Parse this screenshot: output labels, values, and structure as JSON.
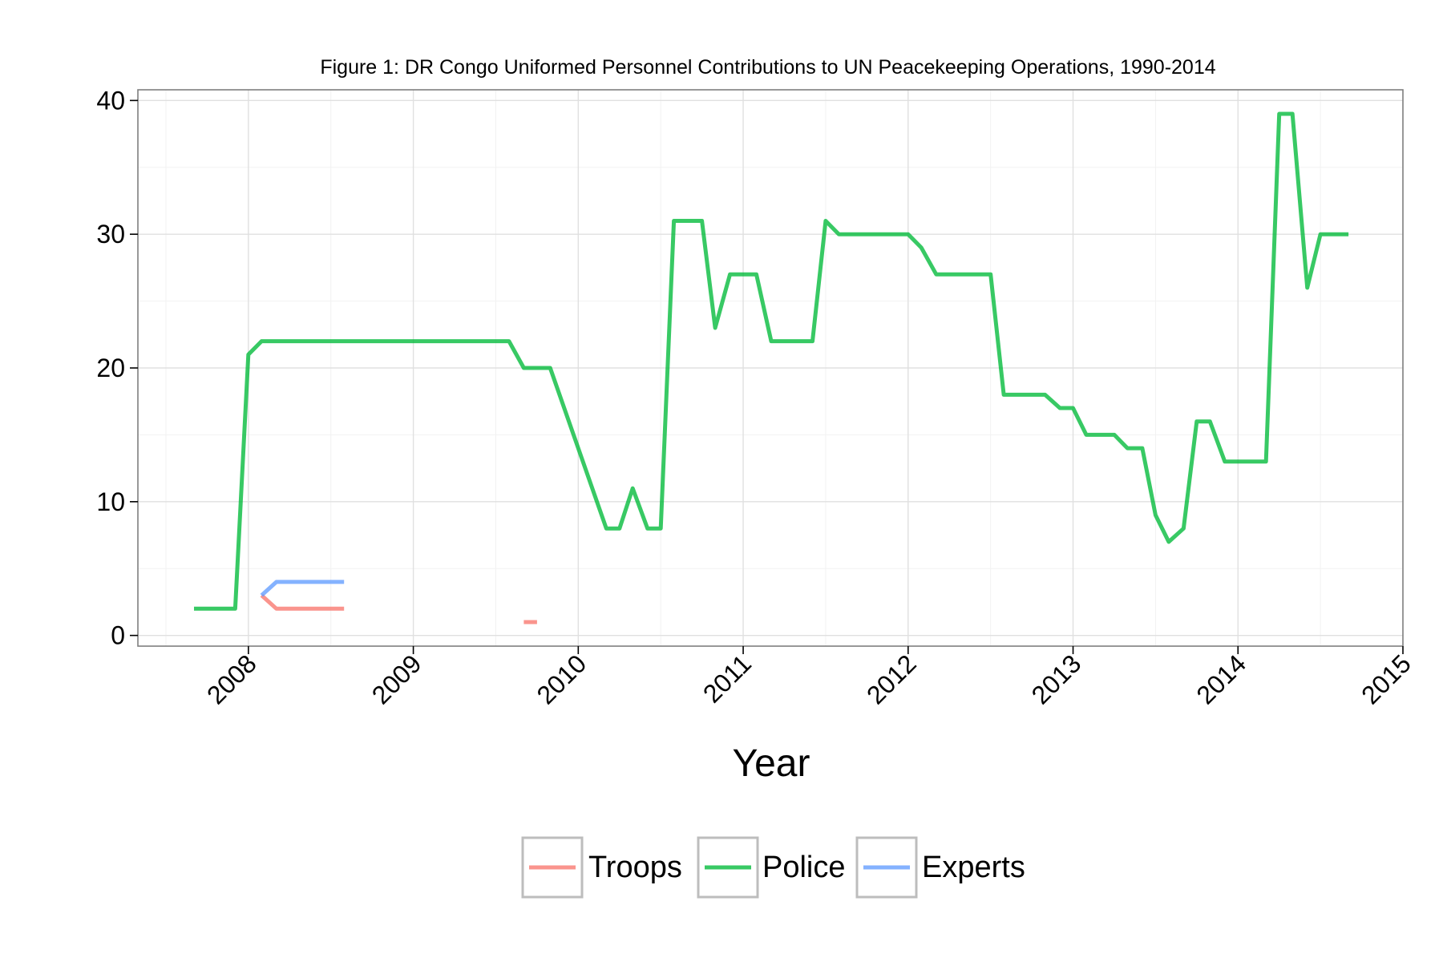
{
  "chart_data": {
    "type": "line",
    "title": "Figure 1: DR Congo Uniformed Personnel Contributions to UN Peacekeeping Operations, 1990-2014",
    "xlabel": "Year",
    "ylabel": "",
    "xlim": [
      2007.33,
      2015.0
    ],
    "ylim": [
      -0.8,
      40.8
    ],
    "x_ticks": [
      2008,
      2009,
      2010,
      2011,
      2012,
      2013,
      2014,
      2015
    ],
    "x_tick_labels": [
      "2008",
      "2009",
      "2010",
      "2011",
      "2012",
      "2013",
      "2014",
      "2015"
    ],
    "y_ticks": [
      0,
      10,
      20,
      30,
      40
    ],
    "y_tick_labels": [
      "0",
      "10",
      "20",
      "30",
      "40"
    ],
    "grid": true,
    "legend_position": "bottom",
    "series": [
      {
        "name": "Troops",
        "color": "#F8766D",
        "segments": [
          {
            "x": [
              2008.08,
              2008.17,
              2008.58
            ],
            "y": [
              3,
              2,
              2
            ]
          },
          {
            "x": [
              2009.67,
              2009.75
            ],
            "y": [
              1,
              1
            ]
          }
        ]
      },
      {
        "name": "Police",
        "color": "#00BA38",
        "segments": [
          {
            "x": [
              2007.67,
              2007.92,
              2008.0,
              2008.08,
              2008.17,
              2009.58,
              2009.67,
              2009.83,
              2010.17,
              2010.25,
              2010.33,
              2010.42,
              2010.5,
              2010.58,
              2010.75,
              2010.83,
              2010.92,
              2011.08,
              2011.17,
              2011.42,
              2011.5,
              2011.58,
              2012.0,
              2012.08,
              2012.17,
              2012.5,
              2012.58,
              2012.83,
              2012.92,
              2013.0,
              2013.08,
              2013.25,
              2013.33,
              2013.42,
              2013.5,
              2013.58,
              2013.67,
              2013.75,
              2013.83,
              2013.92,
              2014.17,
              2014.25,
              2014.33,
              2014.42,
              2014.5,
              2014.67
            ],
            "y": [
              2,
              2,
              21,
              22,
              22,
              22,
              20,
              20,
              8,
              8,
              11,
              8,
              8,
              31,
              31,
              23,
              27,
              27,
              22,
              22,
              31,
              30,
              30,
              29,
              27,
              27,
              18,
              18,
              17,
              17,
              15,
              15,
              14,
              14,
              9,
              7,
              8,
              16,
              16,
              13,
              13,
              39,
              39,
              26,
              30,
              30
            ]
          }
        ]
      },
      {
        "name": "Experts",
        "color": "#619CFF",
        "segments": [
          {
            "x": [
              2008.08,
              2008.17,
              2008.58
            ],
            "y": [
              3,
              4,
              4
            ]
          }
        ]
      }
    ]
  }
}
